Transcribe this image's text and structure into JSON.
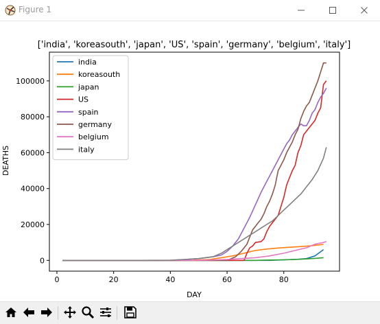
{
  "window": {
    "title": "Figure 1",
    "icons": {
      "app": "matplotlib-icon",
      "minimize": "minimize-icon",
      "maximize": "maximize-icon",
      "close": "close-icon"
    }
  },
  "toolbar": {
    "items": [
      {
        "name": "home-icon"
      },
      {
        "name": "back-arrow-icon"
      },
      {
        "name": "forward-arrow-icon"
      },
      {
        "name": "pan-icon"
      },
      {
        "name": "zoom-icon"
      },
      {
        "name": "configure-subplots-icon"
      },
      {
        "name": "save-icon"
      }
    ]
  },
  "chart_data": {
    "type": "line",
    "title": "['india', 'koreasouth', 'japan', 'US', 'spain', 'germany', 'belgium', 'italy']",
    "xlabel": "DAY",
    "ylabel": "DEATHS",
    "xlim": [
      -2.65,
      99.65
    ],
    "ylim": [
      -6000,
      116000
    ],
    "x_ticks": [
      0,
      20,
      40,
      60,
      80
    ],
    "y_ticks": [
      0,
      20000,
      40000,
      60000,
      80000,
      100000
    ],
    "legend_position": "top-left",
    "grid": false,
    "series": [
      {
        "name": "india",
        "color": "#1f77b4",
        "points": [
          [
            2,
            0
          ],
          [
            60,
            0
          ],
          [
            70,
            0
          ],
          [
            75,
            0
          ],
          [
            80,
            300
          ],
          [
            85,
            600
          ],
          [
            88,
            1000
          ],
          [
            91,
            2500
          ],
          [
            94,
            6000
          ]
        ]
      },
      {
        "name": "koreasouth",
        "color": "#ff7f0e",
        "points": [
          [
            2,
            0
          ],
          [
            40,
            0
          ],
          [
            48,
            100
          ],
          [
            54,
            500
          ],
          [
            58,
            1500
          ],
          [
            62,
            2500
          ],
          [
            66,
            4000
          ],
          [
            70,
            5500
          ],
          [
            74,
            6300
          ],
          [
            78,
            6900
          ],
          [
            82,
            7300
          ],
          [
            86,
            7700
          ],
          [
            90,
            8200
          ],
          [
            94,
            8900
          ]
        ]
      },
      {
        "name": "japan",
        "color": "#2ca02c",
        "points": [
          [
            2,
            0
          ],
          [
            55,
            0
          ],
          [
            65,
            0
          ],
          [
            70,
            0
          ],
          [
            75,
            200
          ],
          [
            80,
            300
          ],
          [
            84,
            500
          ],
          [
            88,
            800
          ],
          [
            91,
            1100
          ],
          [
            94,
            1500
          ]
        ]
      },
      {
        "name": "US",
        "color": "#d62728",
        "points": [
          [
            2,
            0
          ],
          [
            62,
            0
          ],
          [
            66,
            0
          ],
          [
            67,
            4000
          ],
          [
            68,
            7000
          ],
          [
            69,
            8000
          ],
          [
            70,
            10000
          ],
          [
            72,
            10500
          ],
          [
            73,
            12000
          ],
          [
            74,
            16000
          ],
          [
            75,
            19000
          ],
          [
            76,
            21000
          ],
          [
            77,
            23000
          ],
          [
            78,
            25000
          ],
          [
            79,
            30000
          ],
          [
            80,
            35000
          ],
          [
            81,
            42000
          ],
          [
            82,
            46000
          ],
          [
            83,
            50000
          ],
          [
            84,
            53000
          ],
          [
            85,
            60000
          ],
          [
            86,
            64000
          ],
          [
            87,
            70000
          ],
          [
            88,
            72000
          ],
          [
            89,
            74000
          ],
          [
            90,
            76000
          ],
          [
            91,
            78000
          ],
          [
            92,
            82000
          ],
          [
            93,
            85000
          ],
          [
            94,
            98000
          ],
          [
            95,
            100000
          ]
        ]
      },
      {
        "name": "spain",
        "color": "#9467bd",
        "points": [
          [
            2,
            0
          ],
          [
            40,
            0
          ],
          [
            45,
            500
          ],
          [
            50,
            1000
          ],
          [
            55,
            2000
          ],
          [
            58,
            3000
          ],
          [
            60,
            5000
          ],
          [
            62,
            8000
          ],
          [
            64,
            12000
          ],
          [
            66,
            18000
          ],
          [
            68,
            24000
          ],
          [
            70,
            31000
          ],
          [
            72,
            38000
          ],
          [
            73,
            41000
          ],
          [
            74,
            44000
          ],
          [
            75,
            47000
          ],
          [
            76,
            50000
          ],
          [
            77,
            53000
          ],
          [
            78,
            56000
          ],
          [
            79,
            59000
          ],
          [
            80,
            62000
          ],
          [
            81,
            65000
          ],
          [
            82,
            67000
          ],
          [
            83,
            70000
          ],
          [
            84,
            72000
          ],
          [
            85,
            74000
          ],
          [
            86,
            76000
          ],
          [
            87,
            75000
          ],
          [
            88,
            75000
          ],
          [
            89,
            78000
          ],
          [
            90,
            82000
          ],
          [
            91,
            84000
          ],
          [
            92,
            88000
          ],
          [
            93,
            91000
          ],
          [
            94,
            93000
          ],
          [
            95,
            96000
          ]
        ]
      },
      {
        "name": "germany",
        "color": "#8c564b",
        "points": [
          [
            2,
            0
          ],
          [
            60,
            0
          ],
          [
            63,
            2000
          ],
          [
            65,
            5000
          ],
          [
            67,
            9000
          ],
          [
            68,
            13000
          ],
          [
            69,
            17000
          ],
          [
            70,
            19000
          ],
          [
            71,
            21000
          ],
          [
            72,
            23000
          ],
          [
            73,
            26000
          ],
          [
            74,
            30000
          ],
          [
            75,
            33000
          ],
          [
            76,
            37000
          ],
          [
            77,
            42000
          ],
          [
            78,
            50000
          ],
          [
            79,
            53000
          ],
          [
            80,
            56000
          ],
          [
            81,
            60000
          ],
          [
            82,
            63000
          ],
          [
            83,
            66000
          ],
          [
            84,
            70000
          ],
          [
            85,
            73000
          ],
          [
            86,
            79000
          ],
          [
            87,
            83000
          ],
          [
            88,
            86000
          ],
          [
            89,
            88000
          ],
          [
            90,
            92000
          ],
          [
            91,
            96000
          ],
          [
            92,
            100000
          ],
          [
            93,
            105000
          ],
          [
            94,
            110000
          ],
          [
            95,
            110000
          ]
        ]
      },
      {
        "name": "belgium",
        "color": "#e377c2",
        "points": [
          [
            2,
            0
          ],
          [
            50,
            0
          ],
          [
            60,
            500
          ],
          [
            65,
            1000
          ],
          [
            70,
            1500
          ],
          [
            75,
            2500
          ],
          [
            80,
            4000
          ],
          [
            84,
            5500
          ],
          [
            88,
            7000
          ],
          [
            91,
            9000
          ],
          [
            94,
            10000
          ],
          [
            95,
            10500
          ]
        ]
      },
      {
        "name": "italy",
        "color": "#7f7f7f",
        "points": [
          [
            2,
            0
          ],
          [
            30,
            0
          ],
          [
            40,
            100
          ],
          [
            45,
            500
          ],
          [
            50,
            1000
          ],
          [
            55,
            2000
          ],
          [
            58,
            4000
          ],
          [
            60,
            6000
          ],
          [
            62,
            8000
          ],
          [
            64,
            10000
          ],
          [
            66,
            12000
          ],
          [
            68,
            14000
          ],
          [
            70,
            16000
          ],
          [
            72,
            18000
          ],
          [
            74,
            20000
          ],
          [
            76,
            22000
          ],
          [
            78,
            25000
          ],
          [
            80,
            28000
          ],
          [
            82,
            31000
          ],
          [
            84,
            34000
          ],
          [
            86,
            37000
          ],
          [
            88,
            41000
          ],
          [
            90,
            45000
          ],
          [
            92,
            50000
          ],
          [
            94,
            57000
          ],
          [
            95,
            63000
          ]
        ]
      }
    ]
  }
}
